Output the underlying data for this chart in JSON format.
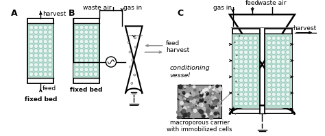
{
  "bg_color": "#ffffff",
  "bed_fill": "#b8ddd0",
  "bed_stroke": "#000000",
  "label_A": "A",
  "label_B": "B",
  "label_C": "C",
  "text_fixed_bed": "fixed bed",
  "text_harvest": "harvest",
  "text_feed": "feed",
  "text_waste_air": "waste air",
  "text_gas_in": "gas in",
  "text_cond_vessel": "conditioning\nvessel",
  "text_macro": "macroporous carrier\nwith immobilized cells",
  "font_size_label": 9,
  "font_size_text": 6.5
}
